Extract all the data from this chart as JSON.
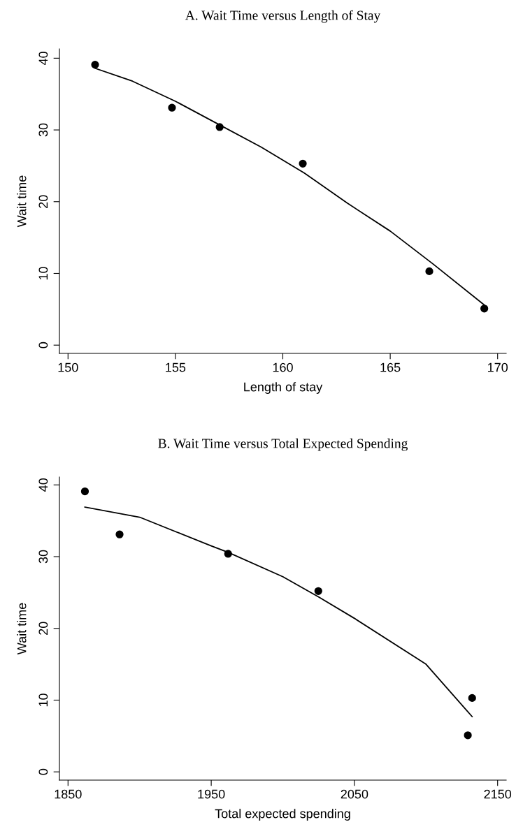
{
  "chart_data": [
    {
      "type": "scatter",
      "title": "A. Wait Time versus Length of Stay",
      "xlabel": "Length of stay",
      "ylabel": "Wait time",
      "xlim": [
        149.6,
        170.4
      ],
      "xticks": [
        150,
        155,
        160,
        165,
        170
      ],
      "ylim": [
        -1.15,
        41.3
      ],
      "yticks": [
        0,
        10,
        20,
        30,
        40
      ],
      "grid": false,
      "legend": false,
      "series": [
        {
          "color": "#000000",
          "marker": "circle",
          "x": [
            151.26,
            154.84,
            157.06,
            160.93,
            166.82,
            169.38
          ],
          "values": [
            39.1,
            33.1,
            30.4,
            25.3,
            10.3,
            5.1
          ]
        },
        {
          "type": "line",
          "color": "#000000",
          "marker": "none",
          "line_style": "solid",
          "x": [
            151.26,
            153,
            155,
            157,
            159,
            161,
            163,
            165,
            167,
            169.38
          ],
          "values": [
            38.6,
            36.8,
            34.0,
            30.8,
            27.6,
            24.0,
            19.8,
            15.9,
            11.3,
            5.6
          ]
        }
      ]
    },
    {
      "type": "scatter",
      "title": "B. Wait Time versus Total Expected Spending",
      "xlabel": "Total expected spending",
      "ylabel": "Wait time",
      "xlim": [
        1844,
        2156
      ],
      "xticks": [
        1850,
        1950,
        2050,
        2150
      ],
      "ylim": [
        -1.15,
        41.1
      ],
      "yticks": [
        0,
        10,
        20,
        30,
        40
      ],
      "grid": false,
      "legend": false,
      "series": [
        {
          "color": "#000000",
          "marker": "circle",
          "x": [
            1861.8,
            1886.0,
            1961.8,
            2024.8,
            2129.2,
            2132.2
          ],
          "values": [
            39.1,
            33.1,
            30.4,
            25.2,
            5.1,
            10.3
          ]
        },
        {
          "type": "line",
          "color": "#000000",
          "marker": "none",
          "line_style": "solid",
          "x": [
            1861.8,
            1900,
            1950,
            1961.8,
            2000,
            2024.8,
            2050,
            2100,
            2132.2
          ],
          "values": [
            36.9,
            35.5,
            31.5,
            30.6,
            27.2,
            24.4,
            21.4,
            15.0,
            7.7
          ]
        }
      ]
    }
  ]
}
